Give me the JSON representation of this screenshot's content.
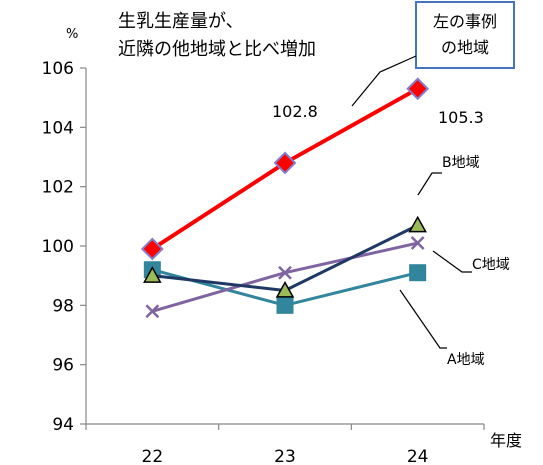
{
  "chart_data": {
    "type": "line",
    "x": [
      "22",
      "23",
      "24"
    ],
    "ylim": [
      94,
      106
    ],
    "yticks": [
      "94",
      "96",
      "98",
      "100",
      "102",
      "104",
      "106"
    ],
    "y_unit": "%",
    "x_unit": "年度",
    "grid": false,
    "series": [
      {
        "name": "左の事例の地域",
        "values": [
          99.9,
          102.8,
          105.3
        ],
        "color": "#ff0000",
        "marker": "diamond",
        "marker_fill": "#ff0000",
        "marker_stroke": "#8080cc"
      },
      {
        "name": "B地域",
        "values": [
          99.0,
          98.5,
          100.7
        ],
        "color": "#1f3864",
        "marker": "triangle",
        "marker_fill": "#9bbb59",
        "marker_stroke": "#000000"
      },
      {
        "name": "C地域",
        "values": [
          97.8,
          99.1,
          100.1
        ],
        "color": "#8064a2",
        "marker": "x",
        "marker_fill": "none",
        "marker_stroke": "#8064a2"
      },
      {
        "name": "A地域",
        "values": [
          99.2,
          98.0,
          99.1
        ],
        "color": "#31859c",
        "marker": "square",
        "marker_fill": "#31859c",
        "marker_stroke": "#31859c"
      }
    ],
    "title": "生乳生産量が、\n近隣の他地域と比べ増加",
    "title_lines": [
      "生乳生産量が、",
      "近隣の他地域と比べ増加"
    ],
    "callout": {
      "lines": [
        "左の事例",
        "の地域"
      ],
      "border_color": "#4472c4"
    },
    "data_labels": [
      "102.8",
      "105.3"
    ],
    "series_labels": {
      "b": "B地域",
      "c": "C地域",
      "a": "A地域"
    }
  }
}
